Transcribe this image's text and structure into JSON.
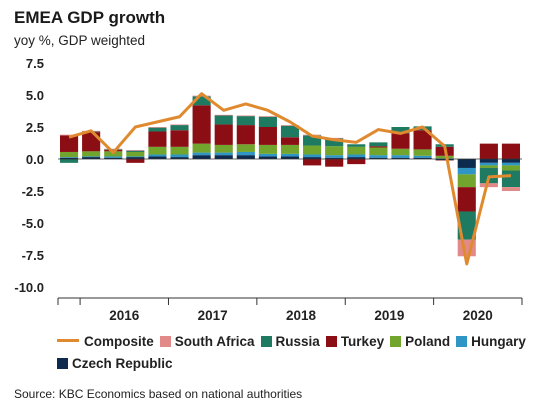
{
  "chart_data": {
    "type": "bar",
    "title": "EMEA GDP growth",
    "subtitle": "yoy %, GDP weighted",
    "source": "Source: KBC Economics based on national authorities",
    "ylim": [
      -10,
      7.5
    ],
    "yticks": [
      "7.5",
      "5.0",
      "2.5",
      "0.0",
      "-2.5",
      "-5.0",
      "-7.5",
      "-10.0"
    ],
    "ytick_values": [
      7.5,
      5.0,
      2.5,
      0.0,
      -2.5,
      -5.0,
      -7.5,
      -10.0
    ],
    "x_labels": [
      "2016",
      "2017",
      "2018",
      "2019",
      "2020"
    ],
    "quarters": [
      "2015Q4",
      "2016Q1",
      "2016Q2",
      "2016Q3",
      "2016Q4",
      "2017Q1",
      "2017Q2",
      "2017Q3",
      "2017Q4",
      "2018Q1",
      "2018Q2",
      "2018Q3",
      "2018Q4",
      "2019Q1",
      "2019Q2",
      "2019Q3",
      "2019Q4",
      "2020Q1",
      "2020Q2",
      "2020Q3",
      "2020Q4"
    ],
    "series": [
      {
        "name": "Czech Republic",
        "color": "#0d2b4e",
        "values": [
          0.1,
          0.15,
          0.1,
          0.15,
          0.2,
          0.15,
          0.3,
          0.3,
          0.3,
          0.2,
          0.2,
          0.15,
          0.1,
          0.15,
          0.1,
          0.1,
          0.1,
          -0.1,
          -0.7,
          -0.3,
          -0.3
        ]
      },
      {
        "name": "Hungary",
        "color": "#2e95c4",
        "values": [
          0.05,
          0.05,
          0.1,
          0.05,
          0.15,
          0.2,
          0.2,
          0.2,
          0.25,
          0.2,
          0.2,
          0.2,
          0.2,
          0.2,
          0.2,
          0.2,
          0.15,
          0.05,
          -0.5,
          -0.2,
          -0.2
        ]
      },
      {
        "name": "Poland",
        "color": "#72a52e",
        "values": [
          0.4,
          0.4,
          0.4,
          0.35,
          0.6,
          0.6,
          0.7,
          0.6,
          0.6,
          0.7,
          0.7,
          0.7,
          0.7,
          0.6,
          0.6,
          0.5,
          0.5,
          0.2,
          -1.0,
          -0.2,
          -0.4
        ]
      },
      {
        "name": "Turkey",
        "color": "#8a0e14",
        "values": [
          1.3,
          1.5,
          0.1,
          -0.3,
          1.2,
          1.3,
          3.0,
          1.6,
          1.5,
          1.4,
          0.6,
          -0.5,
          -0.6,
          -0.4,
          0.1,
          1.2,
          1.5,
          0.7,
          -1.9,
          1.2,
          1.2
        ]
      },
      {
        "name": "Russia",
        "color": "#1f7a62",
        "values": [
          -0.3,
          0.05,
          0.05,
          0.1,
          0.3,
          0.4,
          0.7,
          0.7,
          0.7,
          0.8,
          0.9,
          0.8,
          0.6,
          0.2,
          0.3,
          0.5,
          0.3,
          0.2,
          -2.2,
          -1.2,
          -1.3
        ]
      },
      {
        "name": "South Africa",
        "color": "#e28a88",
        "values": [
          0.05,
          0.05,
          0.05,
          0.05,
          0.05,
          0.05,
          0.05,
          0.05,
          0.05,
          0.05,
          0.05,
          0.05,
          0.05,
          0.0,
          0.0,
          0.0,
          0.0,
          -0.05,
          -1.3,
          -0.3,
          -0.3
        ]
      }
    ],
    "composite": {
      "name": "Composite",
      "color": "#e08a30",
      "values": [
        1.7,
        2.2,
        0.5,
        2.5,
        2.9,
        3.3,
        5.1,
        3.8,
        4.3,
        3.8,
        2.9,
        1.8,
        1.5,
        1.3,
        2.3,
        2.0,
        2.5,
        1.0,
        -8.2,
        -1.4,
        -1.3
      ]
    }
  }
}
